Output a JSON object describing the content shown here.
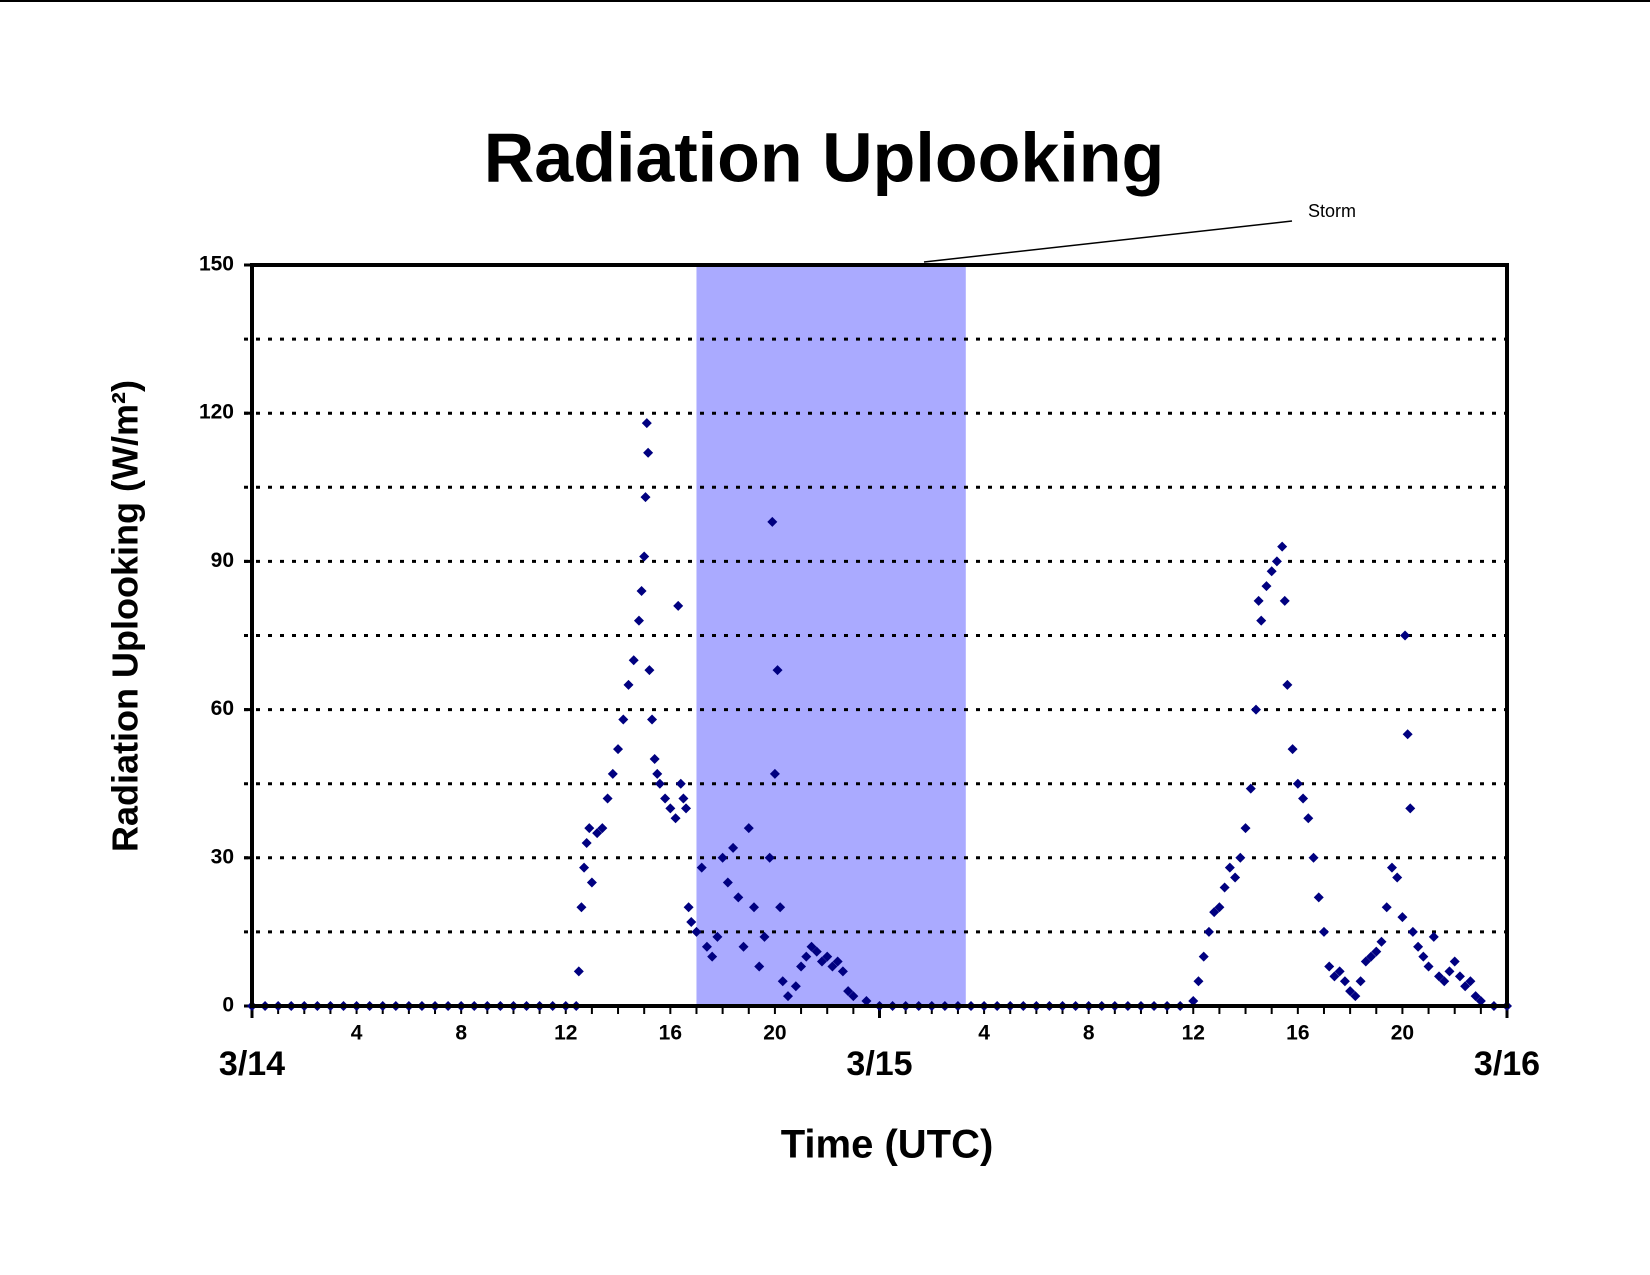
{
  "chart_data": {
    "type": "scatter",
    "title": "Radiation Uplooking",
    "y_label": "Radiation Uplooking (W/m²)",
    "x_label": "Time (UTC)",
    "xlim": [
      0,
      48
    ],
    "ylim": [
      0,
      150
    ],
    "yticks": [
      0,
      30,
      60,
      90,
      120,
      150
    ],
    "ygrid": [
      15,
      30,
      45,
      60,
      75,
      90,
      105,
      120,
      135
    ],
    "grid": true,
    "xticks": [
      4,
      8,
      12,
      16,
      20,
      {
        "value": 28,
        "label": "4"
      },
      {
        "value": 32,
        "label": "8"
      },
      {
        "value": 36,
        "label": "12"
      },
      {
        "value": 40,
        "label": "16"
      },
      {
        "value": 44,
        "label": "20"
      }
    ],
    "x_minor_ticks": [
      0,
      1,
      2,
      3,
      4,
      5,
      6,
      7,
      8,
      9,
      10,
      11,
      12,
      13,
      14,
      15,
      16,
      17,
      18,
      19,
      20,
      21,
      22,
      23,
      24,
      25,
      26,
      27,
      28,
      29,
      30,
      31,
      32,
      33,
      34,
      35,
      36,
      37,
      38,
      39,
      40,
      41,
      42,
      43,
      44,
      45,
      46,
      47,
      48
    ],
    "date_labels": [
      {
        "value": 0,
        "label": "3/14"
      },
      {
        "value": 24,
        "label": "3/15"
      },
      {
        "value": 48,
        "label": "3/16"
      }
    ],
    "storm_range": [
      17,
      27.3
    ],
    "storm_color": "#aaaaff",
    "storm_label": "Storm",
    "series": [
      {
        "color": "#000080",
        "x": [
          0,
          0.5,
          1,
          1.5,
          2,
          2.5,
          3,
          3.5,
          4,
          4.5,
          5,
          5.5,
          6,
          6.5,
          7,
          7.5,
          8,
          8.5,
          9,
          9.5,
          10,
          10.5,
          11,
          11.5,
          12,
          12.4,
          12.5,
          12.6,
          12.7,
          12.8,
          12.9,
          13.0,
          13.2,
          13.4,
          13.6,
          13.8,
          14.0,
          14.2,
          14.4,
          14.6,
          14.8,
          14.9,
          15.0,
          15.05,
          15.1,
          15.15,
          15.2,
          15.3,
          15.4,
          15.5,
          15.6,
          15.8,
          16.0,
          16.2,
          16.3,
          16.4,
          16.5,
          16.6,
          16.7,
          16.8,
          17.0,
          17.2,
          17.4,
          17.6,
          17.8,
          18.0,
          18.2,
          18.4,
          18.6,
          18.8,
          19.0,
          19.2,
          19.4,
          19.6,
          19.8,
          19.9,
          20.0,
          20.1,
          20.2,
          20.3,
          20.5,
          20.8,
          21.0,
          21.2,
          21.4,
          21.6,
          21.8,
          22.0,
          22.2,
          22.4,
          22.6,
          22.8,
          23.0,
          23.5,
          24,
          24.5,
          25,
          25.5,
          26,
          26.5,
          27,
          27.5,
          28,
          28.5,
          29,
          29.5,
          30,
          30.5,
          31,
          31.5,
          32,
          32.5,
          33,
          33.5,
          34,
          34.5,
          35,
          35.5,
          36.0,
          36.2,
          36.4,
          36.6,
          36.8,
          37.0,
          37.2,
          37.4,
          37.6,
          37.8,
          38.0,
          38.2,
          38.4,
          38.5,
          38.6,
          38.8,
          39.0,
          39.2,
          39.4,
          39.5,
          39.6,
          39.8,
          40.0,
          40.2,
          40.4,
          40.6,
          40.8,
          41.0,
          41.2,
          41.4,
          41.6,
          41.8,
          42.0,
          42.2,
          42.4,
          42.6,
          42.8,
          43.0,
          43.2,
          43.4,
          43.6,
          43.8,
          44.0,
          44.1,
          44.2,
          44.3,
          44.4,
          44.6,
          44.8,
          45.0,
          45.2,
          45.4,
          45.6,
          45.8,
          46.0,
          46.2,
          46.4,
          46.6,
          46.8,
          47.0,
          47.5,
          48
        ],
        "values": [
          0,
          0,
          0,
          0,
          0,
          0,
          0,
          0,
          0,
          0,
          0,
          0,
          0,
          0,
          0,
          0,
          0,
          0,
          0,
          0,
          0,
          0,
          0,
          0,
          0,
          0,
          7,
          20,
          28,
          33,
          36,
          25,
          35,
          36,
          42,
          47,
          52,
          58,
          65,
          70,
          78,
          84,
          91,
          103,
          118,
          112,
          68,
          58,
          50,
          47,
          45,
          42,
          40,
          38,
          81,
          45,
          42,
          40,
          20,
          17,
          15,
          28,
          12,
          10,
          14,
          30,
          25,
          32,
          22,
          12,
          36,
          20,
          8,
          14,
          30,
          98,
          47,
          68,
          20,
          5,
          2,
          4,
          8,
          10,
          12,
          11,
          9,
          10,
          8,
          9,
          7,
          3,
          2,
          1,
          0,
          0,
          0,
          0,
          0,
          0,
          0,
          0,
          0,
          0,
          0,
          0,
          0,
          0,
          0,
          0,
          0,
          0,
          0,
          0,
          0,
          0,
          0,
          0,
          1,
          5,
          10,
          15,
          19,
          20,
          24,
          28,
          26,
          30,
          36,
          44,
          60,
          82,
          78,
          85,
          88,
          90,
          93,
          82,
          65,
          52,
          45,
          42,
          38,
          30,
          22,
          15,
          8,
          6,
          7,
          5,
          3,
          2,
          5,
          9,
          10,
          11,
          13,
          20,
          28,
          26,
          18,
          75,
          55,
          40,
          15,
          12,
          10,
          8,
          14,
          6,
          5,
          7,
          9,
          6,
          4,
          5,
          2,
          1,
          0,
          0
        ]
      }
    ]
  }
}
